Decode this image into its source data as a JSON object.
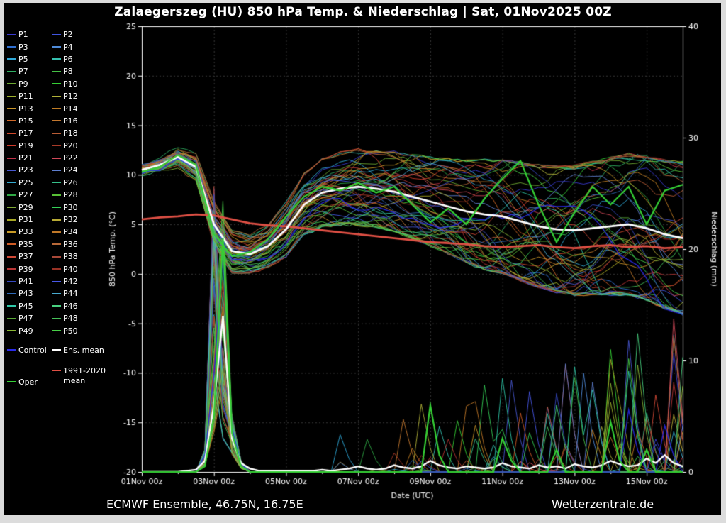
{
  "title": "Zalaegerszeg  (HU)  850 hPa Temp. & Niederschlag | Sat, 01Nov2025 00Z",
  "footer": {
    "left": "ECMWF Ensemble, 46.75N, 16.75E",
    "right": "Wetterzentrale.de"
  },
  "legend": {
    "members": [
      {
        "label": "P1",
        "color": "#3a3ad0"
      },
      {
        "label": "P2",
        "color": "#4055e0"
      },
      {
        "label": "P3",
        "color": "#2f6fd0"
      },
      {
        "label": "P4",
        "color": "#4e8ad8"
      },
      {
        "label": "P5",
        "color": "#2fa8d8"
      },
      {
        "label": "P6",
        "color": "#35c0b0"
      },
      {
        "label": "P7",
        "color": "#2fae62"
      },
      {
        "label": "P8",
        "color": "#45c045"
      },
      {
        "label": "P9",
        "color": "#6da832"
      },
      {
        "label": "P10",
        "color": "#35d035"
      },
      {
        "label": "P11",
        "color": "#9cb02a"
      },
      {
        "label": "P12",
        "color": "#b0b038"
      },
      {
        "label": "P13",
        "color": "#c89428"
      },
      {
        "label": "P14",
        "color": "#c07c24"
      },
      {
        "label": "P15",
        "color": "#d06828"
      },
      {
        "label": "P16",
        "color": "#c4782f"
      },
      {
        "label": "P17",
        "color": "#d0482a"
      },
      {
        "label": "P18",
        "color": "#b85c35"
      },
      {
        "label": "P19",
        "color": "#d03a2a"
      },
      {
        "label": "P20",
        "color": "#a83a28"
      },
      {
        "label": "P21",
        "color": "#c03048"
      },
      {
        "label": "P22",
        "color": "#d04858"
      },
      {
        "label": "P23",
        "color": "#4858d0"
      },
      {
        "label": "P24",
        "color": "#5f7fd0"
      },
      {
        "label": "P25",
        "color": "#35aad0"
      },
      {
        "label": "P26",
        "color": "#35c08a"
      },
      {
        "label": "P27",
        "color": "#2fa845"
      },
      {
        "label": "P28",
        "color": "#58c035"
      },
      {
        "label": "P29",
        "color": "#7fa835"
      },
      {
        "label": "P30",
        "color": "#35d058"
      },
      {
        "label": "P31",
        "color": "#a8a825"
      },
      {
        "label": "P32",
        "color": "#b8aa35"
      },
      {
        "label": "P33",
        "color": "#c89a25"
      },
      {
        "label": "P34",
        "color": "#c07828"
      },
      {
        "label": "P35",
        "color": "#d05c25"
      },
      {
        "label": "P36",
        "color": "#b86838"
      },
      {
        "label": "P37",
        "color": "#d04835"
      },
      {
        "label": "P38",
        "color": "#a84838"
      },
      {
        "label": "P39",
        "color": "#b83535"
      },
      {
        "label": "P40",
        "color": "#983225"
      },
      {
        "label": "P41",
        "color": "#3548c0"
      },
      {
        "label": "P42",
        "color": "#4858e8"
      },
      {
        "label": "P43",
        "color": "#2f6ab8"
      },
      {
        "label": "P44",
        "color": "#48aad0"
      },
      {
        "label": "P45",
        "color": "#2fc8a8"
      },
      {
        "label": "P46",
        "color": "#48d07f"
      },
      {
        "label": "P47",
        "color": "#58a835"
      },
      {
        "label": "P48",
        "color": "#45c058"
      },
      {
        "label": "P49",
        "color": "#8ab835"
      },
      {
        "label": "P50",
        "color": "#48d048"
      }
    ],
    "control": {
      "label": "Control",
      "color": "#2a2ae8"
    },
    "ens_mean": {
      "label": "Ens. mean",
      "color": "#ffffff"
    },
    "climate": {
      "label": "1991-2020\nmean",
      "color": "#e05045"
    },
    "oper": {
      "label": "Oper",
      "color": "#35d035"
    }
  },
  "chart_data": {
    "type": "line",
    "title": "Zalaegerszeg (HU) 850 hPa Temp. & Niederschlag",
    "xlabel": "Date (UTC)",
    "ylabel_left": "850 hPa Temp. (°C)",
    "ylabel_right": "Niederschlag (mm)",
    "temp_range": [
      -20,
      25
    ],
    "precip_range": [
      0,
      40
    ],
    "hours_max": 360,
    "temp_step_h": 12,
    "precip_step_h": 6,
    "temp_ticks": [
      25,
      20,
      15,
      10,
      5,
      0,
      -5,
      -10,
      -15,
      -20
    ],
    "precip_ticks": [
      0,
      10,
      20,
      30,
      40
    ],
    "x_tick_hours": [
      0,
      48,
      96,
      144,
      192,
      240,
      288,
      336
    ],
    "x_tick_labels": [
      "01Nov 00z",
      "03Nov 00z",
      "05Nov 00z",
      "07Nov 00z",
      "09Nov 00z",
      "11Nov 00z",
      "13Nov 00z",
      "15Nov 00z"
    ],
    "grid": true,
    "legend_position": "left",
    "series": {
      "ens_mean_temp": [
        10.5,
        11.0,
        11.8,
        10.8,
        5.0,
        2.3,
        2.0,
        2.8,
        4.5,
        7.0,
        8.2,
        8.6,
        8.8,
        8.6,
        8.3,
        7.8,
        7.3,
        6.8,
        6.3,
        6.0,
        5.8,
        5.3,
        4.8,
        4.5,
        4.4,
        4.6,
        4.8,
        5.0,
        4.6,
        4.0,
        3.6
      ],
      "climate_mean_temp": [
        5.5,
        5.7,
        5.8,
        6.0,
        5.9,
        5.5,
        5.1,
        4.9,
        4.8,
        4.6,
        4.4,
        4.2,
        4.0,
        3.8,
        3.6,
        3.4,
        3.2,
        3.1,
        3.0,
        2.8,
        2.7,
        2.8,
        2.9,
        2.7,
        2.6,
        2.8,
        2.9,
        2.7,
        2.8,
        2.6,
        2.7
      ],
      "oper_temp": [
        10.3,
        10.8,
        12.0,
        11.0,
        4.0,
        1.8,
        2.2,
        3.5,
        5.8,
        7.8,
        8.8,
        8.4,
        9.2,
        8.2,
        8.8,
        7.0,
        5.2,
        6.6,
        5.0,
        7.6,
        9.6,
        11.4,
        7.0,
        3.2,
        6.2,
        8.8,
        7.0,
        8.8,
        5.0,
        8.4,
        9.0
      ],
      "ens_mean_precip": [
        0,
        0,
        0,
        0,
        0,
        0.1,
        0.2,
        1,
        6,
        14,
        3,
        0.8,
        0.3,
        0.1,
        0.1,
        0.1,
        0.1,
        0.1,
        0.1,
        0.1,
        0.2,
        0.1,
        0.2,
        0.3,
        0.5,
        0.3,
        0.2,
        0.3,
        0.6,
        0.4,
        0.3,
        0.5,
        1.0,
        0.6,
        0.4,
        0.3,
        0.5,
        0.4,
        0.3,
        0.4,
        0.8,
        0.5,
        0.4,
        0.3,
        0.6,
        0.4,
        0.5,
        0.3,
        0.7,
        0.5,
        0.4,
        0.6,
        1.0,
        0.7,
        0.5,
        0.6,
        1.2,
        0.8,
        1.5,
        0.8,
        0.5
      ],
      "oper_precip": [
        0,
        0,
        0,
        0,
        0,
        0,
        0,
        0.5,
        5,
        21,
        3.5,
        0.5,
        0,
        0,
        0,
        0,
        0,
        0,
        0,
        0,
        0,
        0,
        0,
        0,
        0,
        0,
        0,
        0,
        0,
        0,
        0,
        0,
        6,
        1.5,
        0,
        0,
        0,
        0,
        0,
        0,
        3,
        1,
        0,
        0,
        0,
        0,
        2,
        0,
        0,
        0,
        0,
        0,
        4.5,
        1,
        0,
        0,
        2,
        0,
        0,
        0,
        0
      ]
    },
    "members": {
      "count": 50,
      "spread_profile": [
        0.6,
        0.6,
        0.65,
        0.8,
        1.2,
        1.1,
        1.0,
        1.1,
        1.4,
        1.6,
        1.8,
        1.9,
        2.0,
        2.0,
        2.1,
        2.2,
        2.3,
        2.5,
        2.7,
        2.9,
        3.0,
        3.1,
        3.2,
        3.3,
        3.4,
        3.5,
        3.6,
        3.7,
        3.8,
        3.9,
        4.0
      ],
      "precip_spike": {
        "center_h": 54,
        "min_mm": 7,
        "max_mm": 26
      },
      "late_precip": {
        "start_h": 120,
        "max_mm": 15
      }
    }
  }
}
